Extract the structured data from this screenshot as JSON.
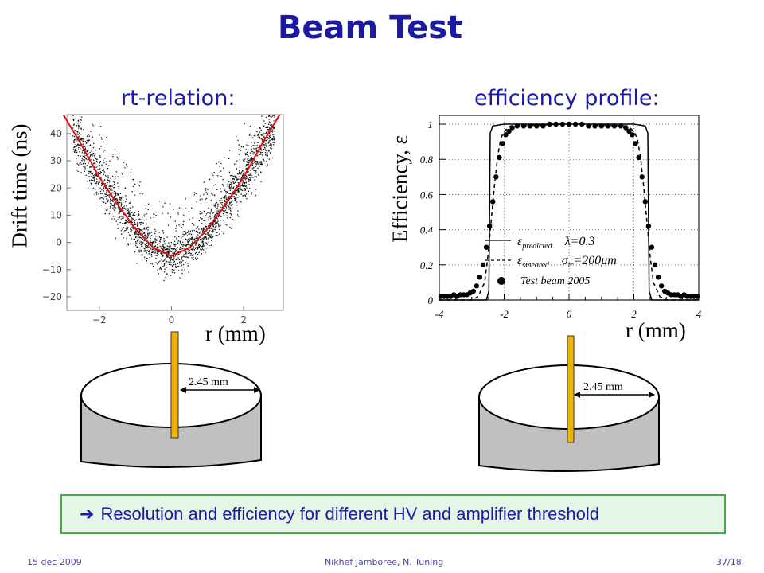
{
  "slide": {
    "title": "Beam Test",
    "left_subtitle": "rt-relation:",
    "right_subtitle": "efficiency profile:",
    "callout_arrow": "➔",
    "callout_text": "Resolution and efficiency for different HV and amplifier threshold",
    "footer_date": "15 dec 2009",
    "footer_center": "Nikhef Jamboree, N. Tuning",
    "footer_page": "37/18"
  },
  "diagrams": {
    "left_dimension": "2.45 mm",
    "right_dimension": "2.45 mm"
  },
  "colors": {
    "title": "#1a1aa6",
    "fit_curve": "#e01010",
    "wire": "#f0b400",
    "tube_body": "#c0c0c0",
    "callout_bg": "#e6f6e6",
    "callout_border": "#4aa84a"
  },
  "chart_data": [
    {
      "type": "scatter",
      "ylabel": "Drift time (ns)",
      "xlabel": "r (mm)",
      "xlim": [
        -2.9,
        3.1
      ],
      "ylim": [
        -25,
        47
      ],
      "x_ticks": [
        -2,
        0,
        2
      ],
      "y_ticks": [
        -20,
        -10,
        0,
        10,
        20,
        30,
        40
      ],
      "x_tick_labels": [
        "−2",
        "0",
        "2"
      ],
      "y_tick_labels": [
        "−20",
        "−10",
        "0",
        "10",
        "20",
        "30",
        "40"
      ],
      "fit_curve": {
        "x": [
          -3.0,
          -2.5,
          -2.0,
          -1.5,
          -1.0,
          -0.5,
          0.0,
          0.5,
          1.0,
          1.5,
          2.0,
          2.5,
          3.0
        ],
        "y": [
          47,
          36,
          24,
          14,
          5,
          -2,
          -5,
          -2,
          5,
          14,
          24,
          36,
          47
        ]
      },
      "point_cloud": {
        "approximate_count": 2400,
        "center_curve": "fit_curve",
        "spread_ns": 5
      }
    },
    {
      "type": "line",
      "ylabel": "Efficiency,  ε",
      "xlabel": "r (mm)",
      "xlim": [
        -4,
        4
      ],
      "ylim": [
        0,
        1.05
      ],
      "x_ticks": [
        -4,
        -2,
        0,
        2,
        4
      ],
      "y_ticks": [
        0,
        0.2,
        0.4,
        0.6,
        0.8,
        1
      ],
      "x_tick_labels": [
        "-4",
        "-2",
        "0",
        "2",
        "4"
      ],
      "y_tick_labels": [
        "0",
        "0.2",
        "0.4",
        "0.6",
        "0.8",
        "1"
      ],
      "legend": [
        {
          "symbol": "ε",
          "sub": "predicted",
          "value": "λ=0.3"
        },
        {
          "symbol": "ε",
          "sub": "smeared",
          "value": "σ",
          "value_sub": "tr",
          "value_tail": "=200μm"
        },
        {
          "label": "Test beam 2005"
        }
      ],
      "series": [
        {
          "name": "predicted",
          "style": "solid",
          "x": [
            -4.0,
            -2.9,
            -2.55,
            -2.47,
            -2.45,
            -2.43,
            -2.35,
            -2.0,
            0,
            2.0,
            2.35,
            2.43,
            2.45,
            2.47,
            2.55,
            2.9,
            4.0
          ],
          "y": [
            0.0,
            0.0,
            0.0,
            0.05,
            0.5,
            0.95,
            0.99,
            1.0,
            1.0,
            1.0,
            0.99,
            0.95,
            0.5,
            0.05,
            0.0,
            0.0,
            0.0
          ]
        },
        {
          "name": "smeared",
          "style": "dashed",
          "x": [
            -4.0,
            -3.0,
            -2.8,
            -2.6,
            -2.5,
            -2.4,
            -2.3,
            -2.2,
            -2.1,
            -2.0,
            -1.8,
            0,
            1.8,
            2.0,
            2.1,
            2.2,
            2.3,
            2.4,
            2.5,
            2.6,
            2.8,
            3.0,
            4.0
          ],
          "y": [
            0.0,
            0.0,
            0.02,
            0.1,
            0.25,
            0.45,
            0.65,
            0.82,
            0.92,
            0.96,
            0.99,
            1.0,
            0.99,
            0.96,
            0.92,
            0.82,
            0.65,
            0.45,
            0.25,
            0.1,
            0.02,
            0.0,
            0.0
          ]
        },
        {
          "name": "Test beam 2005",
          "style": "dots",
          "x": [
            -3.95,
            -3.85,
            -3.75,
            -3.65,
            -3.55,
            -3.45,
            -3.35,
            -3.25,
            -3.15,
            -3.05,
            -2.95,
            -2.85,
            -2.75,
            -2.65,
            -2.55,
            -2.45,
            -2.35,
            -2.25,
            -2.15,
            -2.05,
            -1.95,
            -1.85,
            -1.75,
            -1.6,
            -1.4,
            -1.2,
            -1.0,
            -0.8,
            -0.6,
            -0.4,
            -0.2,
            0.0,
            0.2,
            0.4,
            0.6,
            0.8,
            1.0,
            1.2,
            1.4,
            1.6,
            1.75,
            1.85,
            1.95,
            2.05,
            2.15,
            2.25,
            2.35,
            2.45,
            2.55,
            2.65,
            2.75,
            2.85,
            2.95,
            3.05,
            3.15,
            3.25,
            3.35,
            3.45,
            3.55,
            3.65,
            3.75,
            3.85,
            3.95
          ],
          "y": [
            0.02,
            0.02,
            0.02,
            0.02,
            0.03,
            0.02,
            0.03,
            0.03,
            0.03,
            0.04,
            0.05,
            0.08,
            0.13,
            0.2,
            0.3,
            0.42,
            0.56,
            0.7,
            0.81,
            0.89,
            0.94,
            0.96,
            0.98,
            0.99,
            0.99,
            0.99,
            0.99,
            0.99,
            1.0,
            1.0,
            1.0,
            1.0,
            1.0,
            1.0,
            0.99,
            0.99,
            0.99,
            0.99,
            0.99,
            0.99,
            0.98,
            0.96,
            0.94,
            0.89,
            0.81,
            0.7,
            0.56,
            0.42,
            0.3,
            0.2,
            0.13,
            0.08,
            0.05,
            0.04,
            0.03,
            0.03,
            0.03,
            0.02,
            0.03,
            0.02,
            0.02,
            0.02,
            0.02
          ]
        }
      ]
    }
  ]
}
